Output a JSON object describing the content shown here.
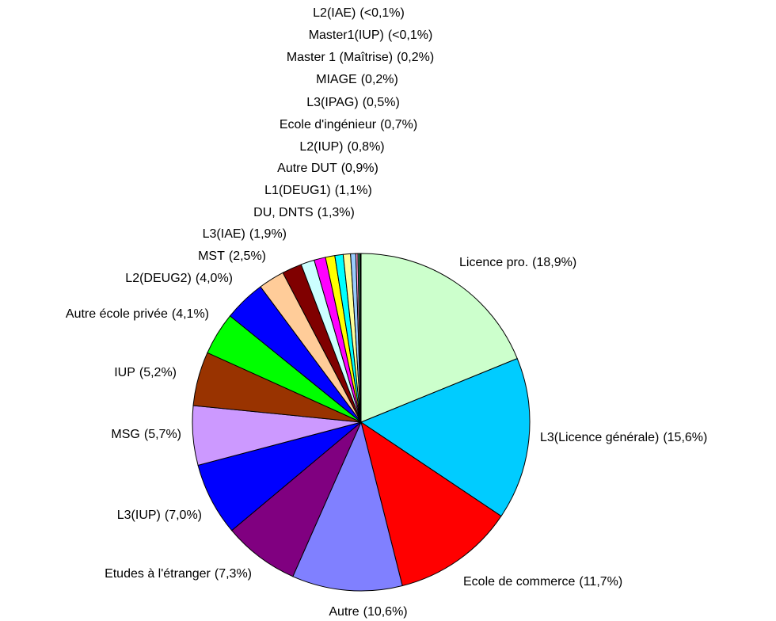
{
  "chart_data": {
    "type": "pie",
    "categories": [
      "Licence pro.",
      "L3(Licence générale)",
      "Ecole de commerce",
      "Autre",
      "Etudes à l'étranger",
      "L3(IUP)",
      "MSG",
      "IUP",
      "Autre école privée",
      "L2(DEUG2)",
      "MST",
      "L3(IAE)",
      "DU, DNTS",
      "L1(DEUG1)",
      "Autre DUT",
      "L2(IUP)",
      "Ecole d'ingénieur",
      "L3(IPAG)",
      "MIAGE",
      "Master 1 (Maîtrise)",
      "Master1(IUP)",
      "L2(IAE)"
    ],
    "values": [
      18.9,
      15.6,
      11.7,
      10.6,
      7.3,
      7.0,
      5.7,
      5.2,
      4.1,
      4.0,
      2.5,
      1.9,
      1.3,
      1.1,
      0.9,
      0.8,
      0.7,
      0.5,
      0.2,
      0.2,
      0.05,
      0.05
    ],
    "value_labels": [
      "(18,9%)",
      "(15,6%)",
      "(11,7%)",
      "(10,6%)",
      "(7,3%)",
      "(7,0%)",
      "(5,7%)",
      "(5,2%)",
      "(4,1%)",
      "(4,0%)",
      "(2,5%)",
      "(1,9%)",
      "(1,3%)",
      "(1,1%)",
      "(0,9%)",
      "(0,8%)",
      "(0,7%)",
      "(0,5%)",
      "(0,2%)",
      "(0,2%)",
      "(<0,1%)",
      "(<0,1%)"
    ],
    "colors": [
      "#ccffcc",
      "#00ccff",
      "#ff0000",
      "#8080ff",
      "#800080",
      "#0000ff",
      "#cc99ff",
      "#993300",
      "#00ff00",
      "#0000ff",
      "#ffcc99",
      "#800000",
      "#ccffff",
      "#ff00ff",
      "#ffff00",
      "#00ffff",
      "#ffff99",
      "#99ccff",
      "#ff99cc",
      "#339966",
      "#333399",
      "#808080"
    ]
  }
}
